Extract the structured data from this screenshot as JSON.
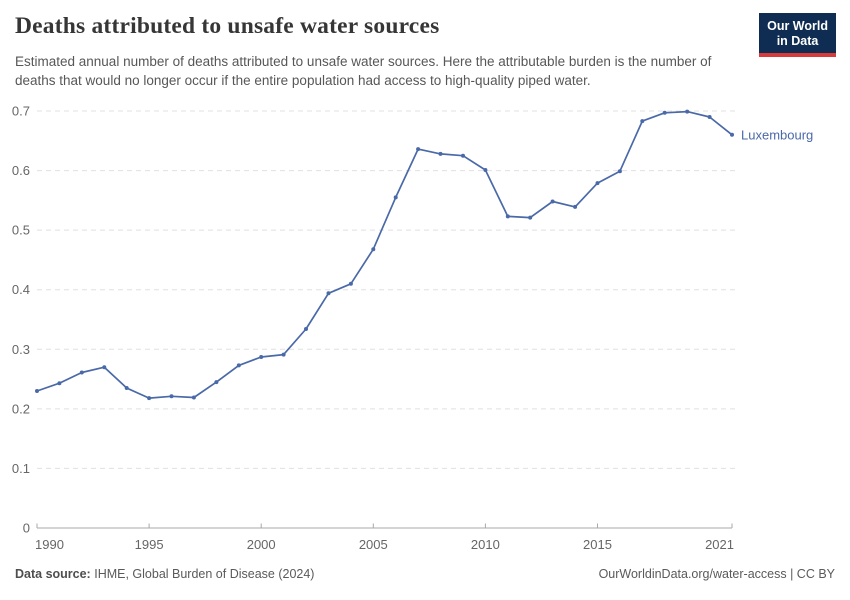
{
  "header": {
    "title": "Deaths attributed to unsafe water sources",
    "subtitle": "Estimated annual number of deaths attributed to unsafe water sources. Here the attributable burden is the number of deaths that would no longer occur if the entire population had access to high-quality piped water.",
    "logo_line1": "Our World",
    "logo_line2": "in Data"
  },
  "footer": {
    "datasource_label": "Data source:",
    "datasource_text": "IHME, Global Burden of Disease (2024)",
    "license_text": "OurWorldinData.org/water-access | CC BY"
  },
  "colors": {
    "series_blue": "#4a69a8",
    "logo_navy": "#0f2d52",
    "logo_red": "#d73a3a",
    "grid_gray": "#e0e0e0",
    "axis_gray": "#a8a8a8",
    "tick_label_gray": "#666666"
  },
  "chart_data": {
    "type": "line",
    "title": "Deaths attributed to unsafe water sources",
    "x": [
      1990,
      1991,
      1992,
      1993,
      1994,
      1995,
      1996,
      1997,
      1998,
      1999,
      2000,
      2001,
      2002,
      2003,
      2004,
      2005,
      2006,
      2007,
      2008,
      2009,
      2010,
      2011,
      2012,
      2013,
      2014,
      2015,
      2016,
      2017,
      2018,
      2019,
      2020,
      2021
    ],
    "series": [
      {
        "name": "Luxembourg",
        "color": "#4a69a8",
        "values": [
          0.23,
          0.243,
          0.261,
          0.27,
          0.235,
          0.218,
          0.221,
          0.219,
          0.245,
          0.273,
          0.287,
          0.291,
          0.334,
          0.394,
          0.41,
          0.468,
          0.555,
          0.636,
          0.628,
          0.625,
          0.601,
          0.523,
          0.521,
          0.548,
          0.539,
          0.579,
          0.599,
          0.683,
          0.697,
          0.699,
          0.69,
          0.66
        ]
      }
    ],
    "xlim": [
      1990,
      2021
    ],
    "ylim": [
      0,
      0.7
    ],
    "xticks": [
      1990,
      1995,
      2000,
      2005,
      2010,
      2015,
      2021
    ],
    "yticks": [
      0,
      0.1,
      0.2,
      0.3,
      0.4,
      0.5,
      0.6,
      0.7
    ],
    "grid": "horizontal-dashed",
    "legend": "line-end-label",
    "entity_label": "Luxembourg"
  }
}
